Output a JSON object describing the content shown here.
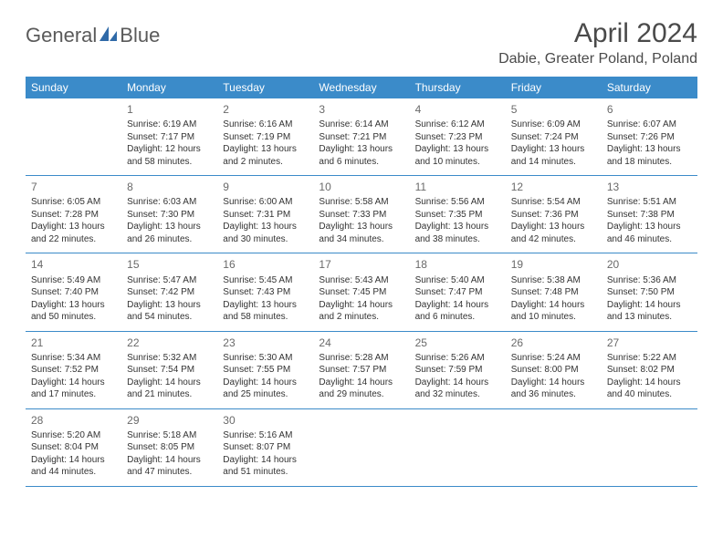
{
  "brand": {
    "part1": "General",
    "part2": "Blue",
    "color_text": "#5a5a5a",
    "color_accent": "#2f6aa8"
  },
  "title": "April 2024",
  "location": "Dabie, Greater Poland, Poland",
  "colors": {
    "header_bg": "#3b8bc9",
    "header_text": "#ffffff",
    "border": "#3b8bc9",
    "background": "#ffffff",
    "body_text": "#333333",
    "daynum_text": "#6a6a6a"
  },
  "day_names": [
    "Sunday",
    "Monday",
    "Tuesday",
    "Wednesday",
    "Thursday",
    "Friday",
    "Saturday"
  ],
  "weeks": [
    [
      null,
      {
        "n": "1",
        "sr": "Sunrise: 6:19 AM",
        "ss": "Sunset: 7:17 PM",
        "d1": "Daylight: 12 hours",
        "d2": "and 58 minutes."
      },
      {
        "n": "2",
        "sr": "Sunrise: 6:16 AM",
        "ss": "Sunset: 7:19 PM",
        "d1": "Daylight: 13 hours",
        "d2": "and 2 minutes."
      },
      {
        "n": "3",
        "sr": "Sunrise: 6:14 AM",
        "ss": "Sunset: 7:21 PM",
        "d1": "Daylight: 13 hours",
        "d2": "and 6 minutes."
      },
      {
        "n": "4",
        "sr": "Sunrise: 6:12 AM",
        "ss": "Sunset: 7:23 PM",
        "d1": "Daylight: 13 hours",
        "d2": "and 10 minutes."
      },
      {
        "n": "5",
        "sr": "Sunrise: 6:09 AM",
        "ss": "Sunset: 7:24 PM",
        "d1": "Daylight: 13 hours",
        "d2": "and 14 minutes."
      },
      {
        "n": "6",
        "sr": "Sunrise: 6:07 AM",
        "ss": "Sunset: 7:26 PM",
        "d1": "Daylight: 13 hours",
        "d2": "and 18 minutes."
      }
    ],
    [
      {
        "n": "7",
        "sr": "Sunrise: 6:05 AM",
        "ss": "Sunset: 7:28 PM",
        "d1": "Daylight: 13 hours",
        "d2": "and 22 minutes."
      },
      {
        "n": "8",
        "sr": "Sunrise: 6:03 AM",
        "ss": "Sunset: 7:30 PM",
        "d1": "Daylight: 13 hours",
        "d2": "and 26 minutes."
      },
      {
        "n": "9",
        "sr": "Sunrise: 6:00 AM",
        "ss": "Sunset: 7:31 PM",
        "d1": "Daylight: 13 hours",
        "d2": "and 30 minutes."
      },
      {
        "n": "10",
        "sr": "Sunrise: 5:58 AM",
        "ss": "Sunset: 7:33 PM",
        "d1": "Daylight: 13 hours",
        "d2": "and 34 minutes."
      },
      {
        "n": "11",
        "sr": "Sunrise: 5:56 AM",
        "ss": "Sunset: 7:35 PM",
        "d1": "Daylight: 13 hours",
        "d2": "and 38 minutes."
      },
      {
        "n": "12",
        "sr": "Sunrise: 5:54 AM",
        "ss": "Sunset: 7:36 PM",
        "d1": "Daylight: 13 hours",
        "d2": "and 42 minutes."
      },
      {
        "n": "13",
        "sr": "Sunrise: 5:51 AM",
        "ss": "Sunset: 7:38 PM",
        "d1": "Daylight: 13 hours",
        "d2": "and 46 minutes."
      }
    ],
    [
      {
        "n": "14",
        "sr": "Sunrise: 5:49 AM",
        "ss": "Sunset: 7:40 PM",
        "d1": "Daylight: 13 hours",
        "d2": "and 50 minutes."
      },
      {
        "n": "15",
        "sr": "Sunrise: 5:47 AM",
        "ss": "Sunset: 7:42 PM",
        "d1": "Daylight: 13 hours",
        "d2": "and 54 minutes."
      },
      {
        "n": "16",
        "sr": "Sunrise: 5:45 AM",
        "ss": "Sunset: 7:43 PM",
        "d1": "Daylight: 13 hours",
        "d2": "and 58 minutes."
      },
      {
        "n": "17",
        "sr": "Sunrise: 5:43 AM",
        "ss": "Sunset: 7:45 PM",
        "d1": "Daylight: 14 hours",
        "d2": "and 2 minutes."
      },
      {
        "n": "18",
        "sr": "Sunrise: 5:40 AM",
        "ss": "Sunset: 7:47 PM",
        "d1": "Daylight: 14 hours",
        "d2": "and 6 minutes."
      },
      {
        "n": "19",
        "sr": "Sunrise: 5:38 AM",
        "ss": "Sunset: 7:48 PM",
        "d1": "Daylight: 14 hours",
        "d2": "and 10 minutes."
      },
      {
        "n": "20",
        "sr": "Sunrise: 5:36 AM",
        "ss": "Sunset: 7:50 PM",
        "d1": "Daylight: 14 hours",
        "d2": "and 13 minutes."
      }
    ],
    [
      {
        "n": "21",
        "sr": "Sunrise: 5:34 AM",
        "ss": "Sunset: 7:52 PM",
        "d1": "Daylight: 14 hours",
        "d2": "and 17 minutes."
      },
      {
        "n": "22",
        "sr": "Sunrise: 5:32 AM",
        "ss": "Sunset: 7:54 PM",
        "d1": "Daylight: 14 hours",
        "d2": "and 21 minutes."
      },
      {
        "n": "23",
        "sr": "Sunrise: 5:30 AM",
        "ss": "Sunset: 7:55 PM",
        "d1": "Daylight: 14 hours",
        "d2": "and 25 minutes."
      },
      {
        "n": "24",
        "sr": "Sunrise: 5:28 AM",
        "ss": "Sunset: 7:57 PM",
        "d1": "Daylight: 14 hours",
        "d2": "and 29 minutes."
      },
      {
        "n": "25",
        "sr": "Sunrise: 5:26 AM",
        "ss": "Sunset: 7:59 PM",
        "d1": "Daylight: 14 hours",
        "d2": "and 32 minutes."
      },
      {
        "n": "26",
        "sr": "Sunrise: 5:24 AM",
        "ss": "Sunset: 8:00 PM",
        "d1": "Daylight: 14 hours",
        "d2": "and 36 minutes."
      },
      {
        "n": "27",
        "sr": "Sunrise: 5:22 AM",
        "ss": "Sunset: 8:02 PM",
        "d1": "Daylight: 14 hours",
        "d2": "and 40 minutes."
      }
    ],
    [
      {
        "n": "28",
        "sr": "Sunrise: 5:20 AM",
        "ss": "Sunset: 8:04 PM",
        "d1": "Daylight: 14 hours",
        "d2": "and 44 minutes."
      },
      {
        "n": "29",
        "sr": "Sunrise: 5:18 AM",
        "ss": "Sunset: 8:05 PM",
        "d1": "Daylight: 14 hours",
        "d2": "and 47 minutes."
      },
      {
        "n": "30",
        "sr": "Sunrise: 5:16 AM",
        "ss": "Sunset: 8:07 PM",
        "d1": "Daylight: 14 hours",
        "d2": "and 51 minutes."
      },
      null,
      null,
      null,
      null
    ]
  ]
}
